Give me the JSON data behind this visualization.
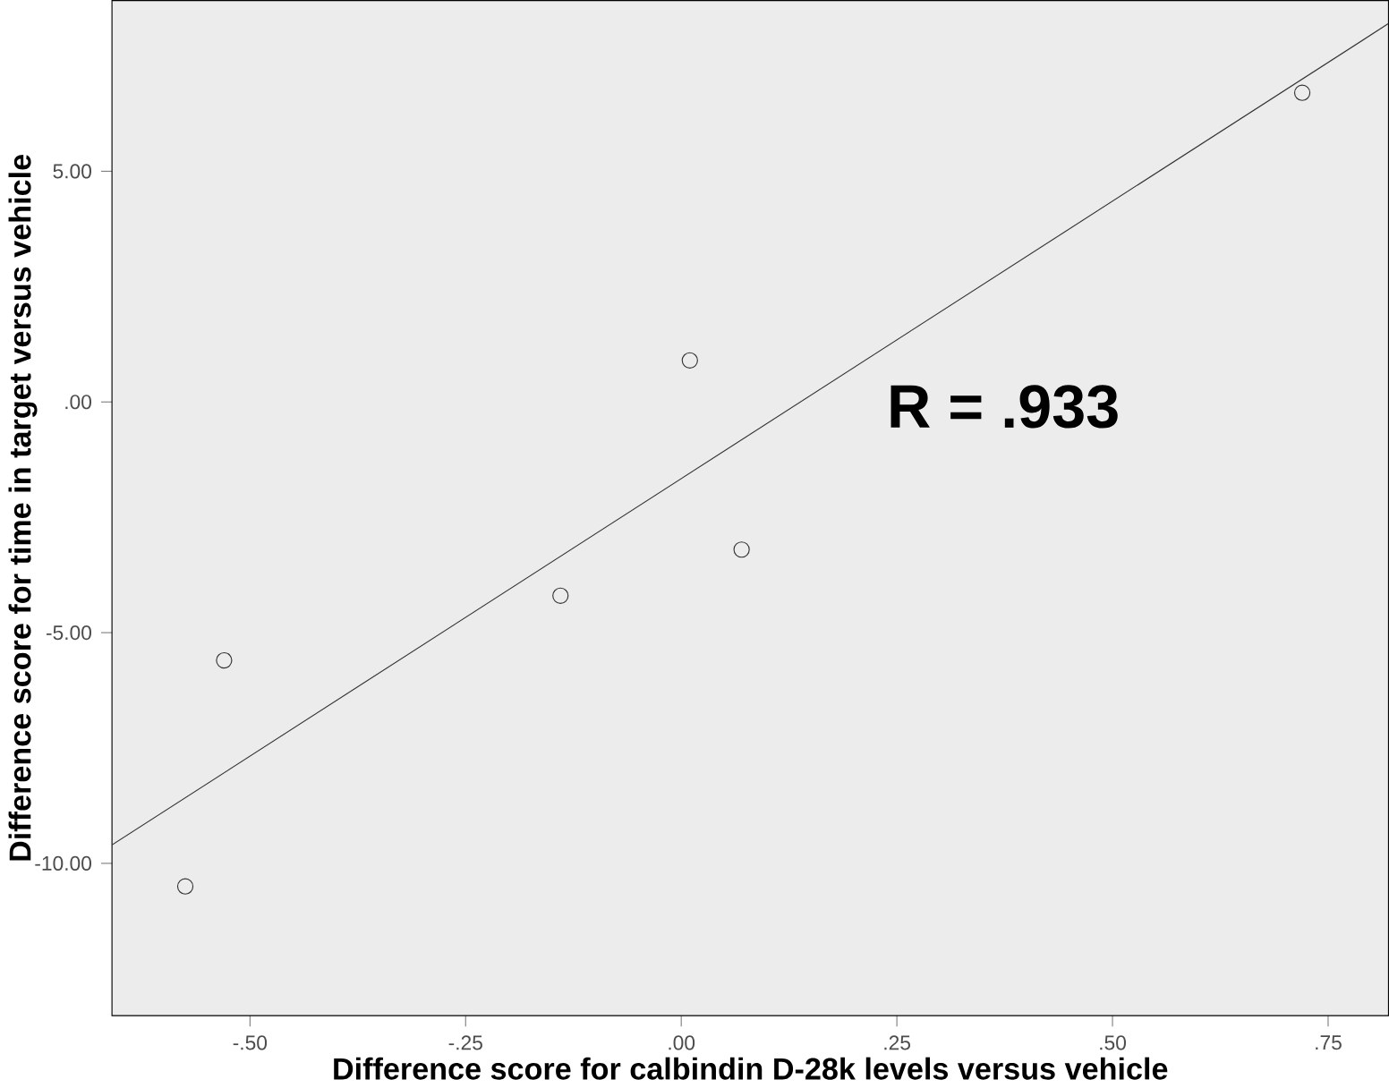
{
  "chart_data": {
    "type": "scatter",
    "xlabel": "Difference score for calbindin D-28k levels versus vehicle",
    "ylabel": "Difference score for time in target versus vehicle",
    "annotations": [
      "R = .933"
    ],
    "xlim": [
      -0.66,
      0.82
    ],
    "ylim": [
      -13.3,
      8.7
    ],
    "xticks": [
      {
        "value": -0.5,
        "label": "-.50"
      },
      {
        "value": -0.25,
        "label": "-.25"
      },
      {
        "value": 0,
        "label": ".00"
      },
      {
        "value": 0.25,
        "label": ".25"
      },
      {
        "value": 0.5,
        "label": ".50"
      },
      {
        "value": 0.75,
        "label": ".75"
      }
    ],
    "yticks": [
      {
        "value": -10,
        "label": "-10.00"
      },
      {
        "value": -5,
        "label": "-5.00"
      },
      {
        "value": 0,
        "label": ".00"
      },
      {
        "value": 5,
        "label": "5.00"
      }
    ],
    "series": [
      {
        "marker": "circle",
        "color": "#333333",
        "x": [
          -0.575,
          -0.53,
          -0.14,
          0.01,
          0.07,
          0.72
        ],
        "values": [
          -10.5,
          -5.6,
          -4.2,
          0.9,
          -3.2,
          6.7
        ]
      },
      {
        "type": "line",
        "marker": "none",
        "color": "#333333",
        "x": [
          -0.66,
          0.82
        ],
        "values": [
          -9.6,
          8.2
        ]
      }
    ]
  }
}
